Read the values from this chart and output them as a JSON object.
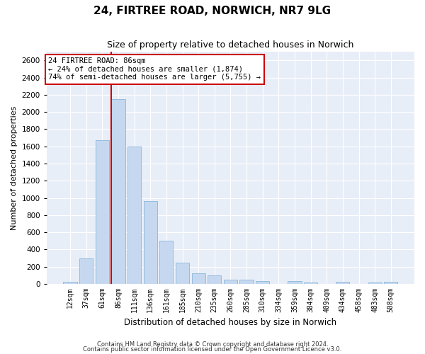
{
  "title": "24, FIRTREE ROAD, NORWICH, NR7 9LG",
  "subtitle": "Size of property relative to detached houses in Norwich",
  "xlabel": "Distribution of detached houses by size in Norwich",
  "ylabel": "Number of detached properties",
  "categories": [
    "12sqm",
    "37sqm",
    "61sqm",
    "86sqm",
    "111sqm",
    "136sqm",
    "161sqm",
    "185sqm",
    "210sqm",
    "235sqm",
    "260sqm",
    "285sqm",
    "310sqm",
    "334sqm",
    "359sqm",
    "384sqm",
    "409sqm",
    "434sqm",
    "458sqm",
    "483sqm",
    "508sqm"
  ],
  "values": [
    25,
    300,
    1670,
    2150,
    1595,
    960,
    505,
    250,
    120,
    100,
    50,
    50,
    30,
    0,
    35,
    20,
    0,
    25,
    0,
    20,
    25
  ],
  "bar_color": "#c5d8f0",
  "bar_edgecolor": "#7aadd4",
  "highlight_index": 3,
  "highlight_color": "#cc0000",
  "ylim": [
    0,
    2700
  ],
  "yticks": [
    0,
    200,
    400,
    600,
    800,
    1000,
    1200,
    1400,
    1600,
    1800,
    2000,
    2200,
    2400,
    2600
  ],
  "annotation_title": "24 FIRTREE ROAD: 86sqm",
  "annotation_line1": "← 24% of detached houses are smaller (1,874)",
  "annotation_line2": "74% of semi-detached houses are larger (5,755) →",
  "annotation_box_color": "#ffffff",
  "annotation_box_edgecolor": "#cc0000",
  "footer1": "Contains HM Land Registry data © Crown copyright and database right 2024.",
  "footer2": "Contains public sector information licensed under the Open Government Licence v3.0.",
  "bg_color": "#e8eef8",
  "grid_color": "#ffffff",
  "fig_bg_color": "#ffffff",
  "title_fontsize": 11,
  "subtitle_fontsize": 9,
  "tick_fontsize": 7,
  "ylabel_fontsize": 8,
  "xlabel_fontsize": 8.5,
  "footer_fontsize": 6,
  "ann_fontsize": 7.5
}
